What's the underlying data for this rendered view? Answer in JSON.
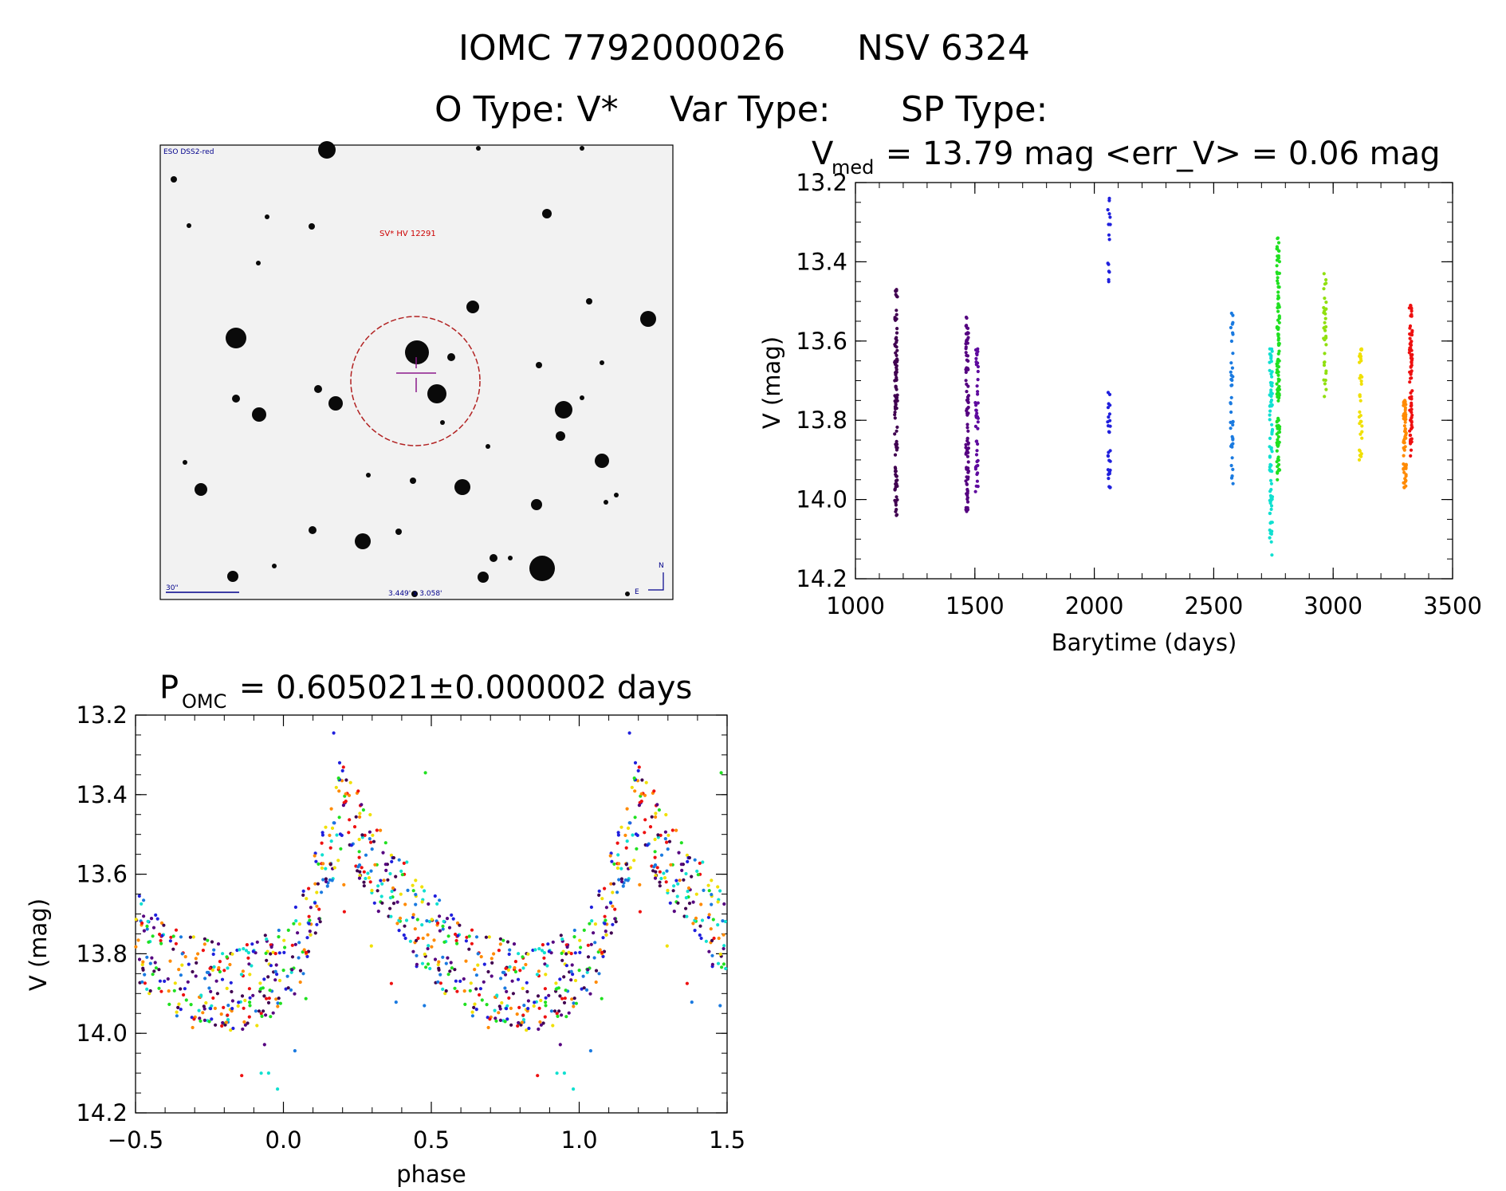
{
  "header": {
    "title_left": "IOMC 7792000026",
    "title_right": "NSV  6324",
    "otype_label": "O Type: V*",
    "vartype_label": "Var Type:",
    "sptype_label": "SP Type:"
  },
  "finder": {
    "survey": "ESO DSS2-red",
    "target": "SV* HV 12291",
    "scale_label": "30\"",
    "fov": "3.449' x 3.058'",
    "north": "N",
    "east": "E"
  },
  "colors": {
    "axes": "#000000",
    "circle": "#b22222",
    "crosshair": "#8b1a8b",
    "finder_text": "#00008b",
    "target_text": "#cc0000"
  },
  "chart_data": [
    {
      "type": "scatter",
      "name": "light-curve",
      "title": {
        "v": "V",
        "sub": "med",
        "rest": " = 13.79 mag <err_V> = 0.06 mag"
      },
      "xlabel": "Barytime (days)",
      "ylabel": "V (mag)",
      "xlim": [
        1000,
        3500
      ],
      "ylim": [
        14.2,
        13.2
      ],
      "xticks": [
        "1000",
        "1500",
        "2000",
        "2500",
        "3000",
        "3500"
      ],
      "yticks": [
        "13.2",
        "13.4",
        "13.6",
        "13.8",
        "14.0",
        "14.2"
      ],
      "series": [
        {
          "x_center": 1170,
          "color": "#400050",
          "ymin": 13.47,
          "ymax": 14.04,
          "n": 110
        },
        {
          "x_center": 1468,
          "color": "#550080",
          "ymin": 13.54,
          "ymax": 14.03,
          "n": 90
        },
        {
          "x_center": 1508,
          "color": "#5e0a9e",
          "ymin": 13.62,
          "ymax": 13.98,
          "n": 50
        },
        {
          "x_center": 2062,
          "color": "#2020dd",
          "ymin": 13.24,
          "ymax": 13.45,
          "n": 15
        },
        {
          "x_center": 2062,
          "color": "#2020dd",
          "ymin": 13.73,
          "ymax": 13.97,
          "n": 30
        },
        {
          "x_center": 2575,
          "color": "#1a7ae0",
          "ymin": 13.53,
          "ymax": 13.96,
          "n": 40
        },
        {
          "x_center": 2740,
          "color": "#10e0d0",
          "ymin": 13.62,
          "ymax": 14.14,
          "n": 80
        },
        {
          "x_center": 2770,
          "color": "#20e020",
          "ymin": 13.34,
          "ymax": 13.95,
          "n": 120
        },
        {
          "x_center": 2965,
          "color": "#90e010",
          "ymin": 13.43,
          "ymax": 13.74,
          "n": 35
        },
        {
          "x_center": 3115,
          "color": "#f0e000",
          "ymin": 13.62,
          "ymax": 13.9,
          "n": 35
        },
        {
          "x_center": 3300,
          "color": "#ff8a00",
          "ymin": 13.75,
          "ymax": 13.97,
          "n": 60
        },
        {
          "x_center": 3325,
          "color": "#ee1010",
          "ymin": 13.51,
          "ymax": 13.89,
          "n": 80
        }
      ]
    },
    {
      "type": "scatter",
      "name": "phase-curve",
      "title": {
        "v": "P",
        "sub": "OMC",
        "rest": " = 0.605021±0.000002 days"
      },
      "xlabel": "phase",
      "ylabel": "V (mag)",
      "xlim": [
        -0.5,
        1.5
      ],
      "ylim": [
        14.2,
        13.2
      ],
      "xticks": [
        "−0.5",
        "0.0",
        "0.5",
        "1.0",
        "1.5"
      ],
      "yticks": [
        "13.2",
        "13.4",
        "13.6",
        "13.8",
        "14.0",
        "14.2"
      ],
      "period_days": 0.605021,
      "colors": [
        "#400050",
        "#550080",
        "#2020dd",
        "#1a7ae0",
        "#10e0d0",
        "#20e020",
        "#f0e000",
        "#ff8a00",
        "#ee1010"
      ]
    }
  ]
}
